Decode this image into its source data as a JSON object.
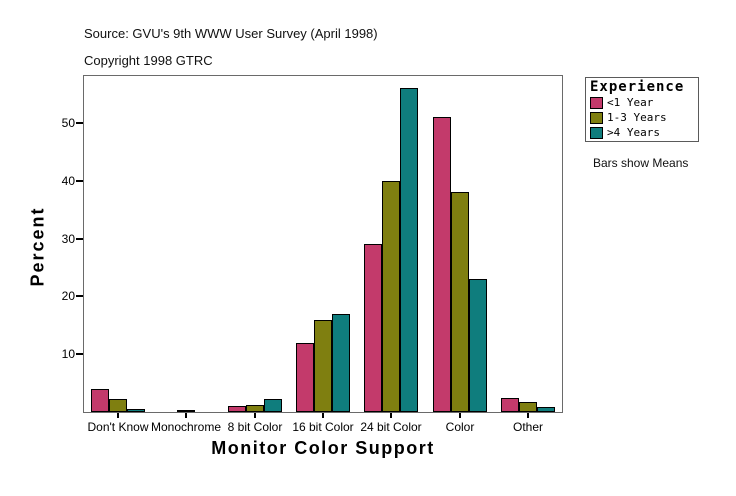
{
  "header": {
    "source": "Source: GVU's 9th WWW User Survey (April 1998)",
    "copyright": "Copyright 1998 GTRC"
  },
  "chart_data": {
    "type": "bar",
    "title": "",
    "xlabel": "Monitor Color Support",
    "ylabel": "Percent",
    "categories": [
      "Don't Know",
      "Monochrome",
      "8 bit Color",
      "16 bit Color",
      "24 bit Color",
      "Color",
      "Other"
    ],
    "series": [
      {
        "name": "<1 Year",
        "color": "#c33a6b",
        "values": [
          4.0,
          0,
          1.0,
          12,
          29,
          51,
          2.5
        ]
      },
      {
        "name": "1-3 Years",
        "color": "#7f7f10",
        "values": [
          2.3,
          0.3,
          1.2,
          16,
          40,
          38,
          1.7
        ]
      },
      {
        "name": ">4 Years",
        "color": "#0f7d7d",
        "values": [
          0.6,
          0,
          2.2,
          17,
          56,
          23,
          0.9
        ]
      }
    ],
    "yticks": [
      10,
      20,
      30,
      40,
      50
    ],
    "ylim": [
      0,
      58
    ],
    "grid": false,
    "legend_position": "top-right-outside"
  },
  "legend": {
    "title": "Experience",
    "note": "Bars show Means"
  }
}
